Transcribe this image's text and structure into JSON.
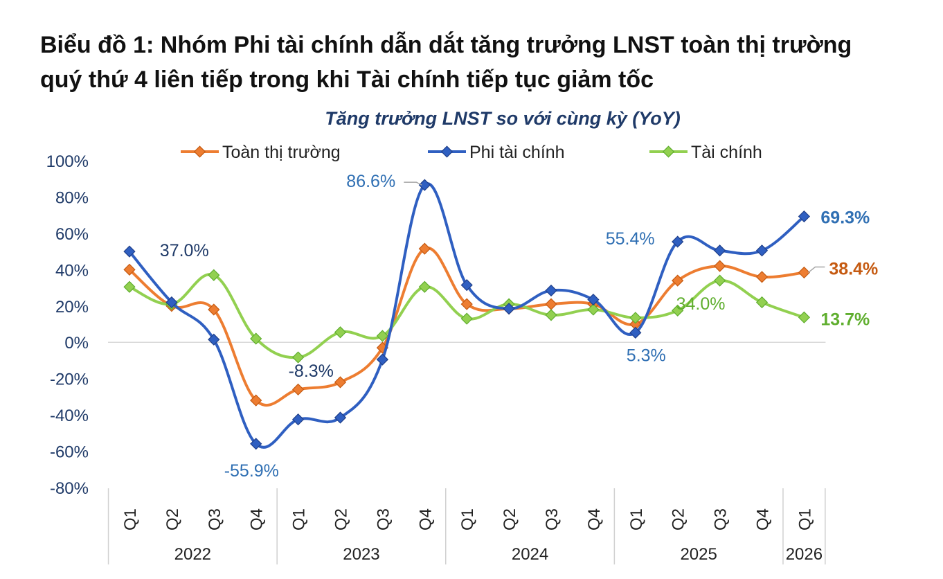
{
  "heading": {
    "line1": "Biểu đồ 1: Nhóm Phi tài chính dẫn dắt tăng trưởng LNST toàn thị trường",
    "line2": "quý thứ 4 liên tiếp trong khi Tài chính tiếp tục giảm tốc"
  },
  "chart_data": {
    "type": "line",
    "title": "Tăng trưởng LNST so với cùng kỳ (YoY)",
    "xlabel": "",
    "ylabel": "",
    "ylim": [
      -80,
      100
    ],
    "yticks": [
      "100%",
      "80%",
      "60%",
      "40%",
      "20%",
      "0%",
      "-20%",
      "-40%",
      "-60%",
      "-80%"
    ],
    "grid": false,
    "legend_position": "top",
    "categories": [
      "Q1",
      "Q2",
      "Q3",
      "Q4",
      "Q1",
      "Q2",
      "Q3",
      "Q4",
      "Q1",
      "Q2",
      "Q3",
      "Q4",
      "Q1",
      "Q2",
      "Q3",
      "Q4",
      "Q1"
    ],
    "year_groups": [
      {
        "label": "2022",
        "count": 4
      },
      {
        "label": "2023",
        "count": 4
      },
      {
        "label": "2024",
        "count": 4
      },
      {
        "label": "2025",
        "count": 4
      },
      {
        "label": "2026",
        "count": 1
      }
    ],
    "series": [
      {
        "name": "Toàn thị trường",
        "color": "#ed7d31",
        "values": [
          40,
          20,
          18,
          -32,
          -26,
          -22,
          -3,
          51.5,
          21,
          18.5,
          21,
          21,
          10,
          34,
          42,
          36,
          38.4
        ]
      },
      {
        "name": "Phi tài chính",
        "color": "#2f5fc1",
        "values": [
          50,
          22,
          1.5,
          -55.9,
          -42.5,
          -41.5,
          -9.5,
          86.6,
          31.5,
          18.5,
          28.5,
          23.5,
          5.3,
          55.4,
          50.5,
          50.5,
          69.3
        ]
      },
      {
        "name": "Tài chính",
        "color": "#92d050",
        "values": [
          30.5,
          21,
          37,
          2,
          -8.3,
          5.5,
          3.5,
          30.5,
          13,
          21,
          15,
          18,
          13.5,
          17.5,
          34,
          22,
          13.7
        ]
      }
    ],
    "annotations": [
      {
        "text": "37.0%",
        "series": 2,
        "index": 2,
        "color": "#1f3a68"
      },
      {
        "text": "-8.3%",
        "series": 2,
        "index": 4,
        "color": "#1f3a68"
      },
      {
        "text": "-55.9%",
        "series": 1,
        "index": 3,
        "color": "#2f6fb3"
      },
      {
        "text": "86.6%",
        "series": 1,
        "index": 7,
        "color": "#2f6fb3"
      },
      {
        "text": "55.4%",
        "series": 1,
        "index": 13,
        "color": "#2f6fb3"
      },
      {
        "text": "5.3%",
        "series": 1,
        "index": 12,
        "color": "#2f6fb3"
      },
      {
        "text": "34.0%",
        "series": 2,
        "index": 14,
        "color": "#5fae2e"
      },
      {
        "text": "69.3%",
        "series": 1,
        "index": 16,
        "color": "#2f6fb3"
      },
      {
        "text": "38.4%",
        "series": 0,
        "index": 16,
        "color": "#c55a11"
      },
      {
        "text": "13.7%",
        "series": 2,
        "index": 16,
        "color": "#5fae2e"
      }
    ]
  }
}
